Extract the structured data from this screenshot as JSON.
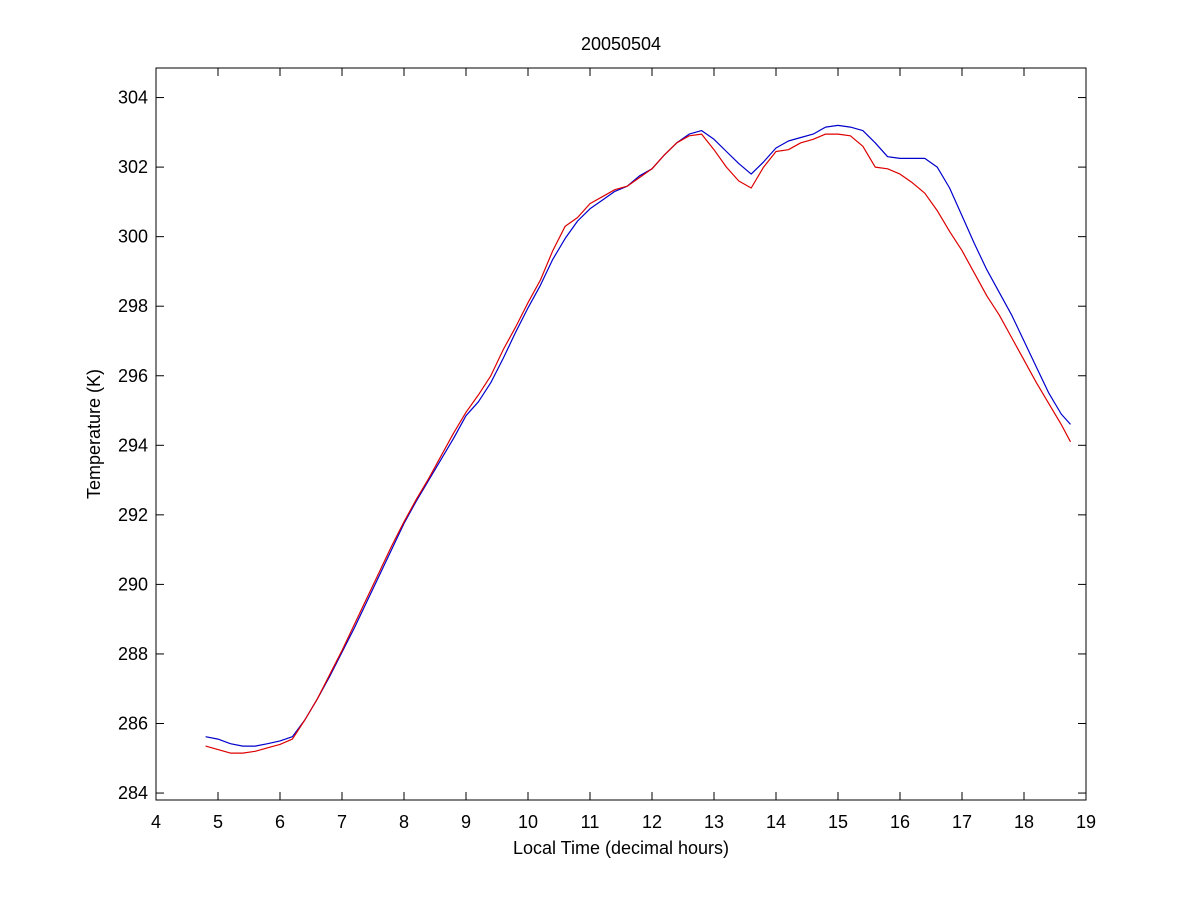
{
  "chart_data": {
    "type": "line",
    "title": "20050504",
    "xlabel": "Local Time (decimal hours)",
    "ylabel": "Temperature (K)",
    "xlim": [
      4,
      19
    ],
    "ylim": [
      283.8,
      304.85
    ],
    "xticks": [
      4,
      5,
      6,
      7,
      8,
      9,
      10,
      11,
      12,
      13,
      14,
      15,
      16,
      17,
      18,
      19
    ],
    "yticks": [
      284,
      286,
      288,
      290,
      292,
      294,
      296,
      298,
      300,
      302,
      304
    ],
    "grid": false,
    "legend": "none",
    "series": [
      {
        "color": "#0000cc",
        "points": [
          [
            4.8,
            285.62
          ],
          [
            5.0,
            285.55
          ],
          [
            5.2,
            285.42
          ],
          [
            5.4,
            285.35
          ],
          [
            5.6,
            285.35
          ],
          [
            5.8,
            285.42
          ],
          [
            6.0,
            285.5
          ],
          [
            6.2,
            285.62
          ],
          [
            6.4,
            286.1
          ],
          [
            6.6,
            286.7
          ],
          [
            6.8,
            287.35
          ],
          [
            7.0,
            288.05
          ],
          [
            7.2,
            288.75
          ],
          [
            7.4,
            289.5
          ],
          [
            7.6,
            290.25
          ],
          [
            7.8,
            291.0
          ],
          [
            8.0,
            291.75
          ],
          [
            8.2,
            292.4
          ],
          [
            8.4,
            293.0
          ],
          [
            8.6,
            293.6
          ],
          [
            8.8,
            294.2
          ],
          [
            9.0,
            294.85
          ],
          [
            9.2,
            295.25
          ],
          [
            9.4,
            295.8
          ],
          [
            9.6,
            296.5
          ],
          [
            9.8,
            297.25
          ],
          [
            10.0,
            297.95
          ],
          [
            10.2,
            298.6
          ],
          [
            10.4,
            299.35
          ],
          [
            10.6,
            299.95
          ],
          [
            10.8,
            300.45
          ],
          [
            11.0,
            300.8
          ],
          [
            11.2,
            301.05
          ],
          [
            11.4,
            301.3
          ],
          [
            11.6,
            301.45
          ],
          [
            11.8,
            301.75
          ],
          [
            12.0,
            301.95
          ],
          [
            12.2,
            302.35
          ],
          [
            12.4,
            302.7
          ],
          [
            12.6,
            302.95
          ],
          [
            12.8,
            303.05
          ],
          [
            13.0,
            302.8
          ],
          [
            13.2,
            302.45
          ],
          [
            13.4,
            302.1
          ],
          [
            13.6,
            301.8
          ],
          [
            13.8,
            302.15
          ],
          [
            14.0,
            302.55
          ],
          [
            14.2,
            302.75
          ],
          [
            14.4,
            302.85
          ],
          [
            14.6,
            302.95
          ],
          [
            14.8,
            303.15
          ],
          [
            15.0,
            303.2
          ],
          [
            15.2,
            303.15
          ],
          [
            15.4,
            303.05
          ],
          [
            15.6,
            302.7
          ],
          [
            15.8,
            302.3
          ],
          [
            16.0,
            302.25
          ],
          [
            16.2,
            302.25
          ],
          [
            16.4,
            302.25
          ],
          [
            16.6,
            302.0
          ],
          [
            16.8,
            301.4
          ],
          [
            17.0,
            300.6
          ],
          [
            17.2,
            299.8
          ],
          [
            17.4,
            299.05
          ],
          [
            17.6,
            298.4
          ],
          [
            17.8,
            297.75
          ],
          [
            18.0,
            297.0
          ],
          [
            18.2,
            296.25
          ],
          [
            18.4,
            295.5
          ],
          [
            18.6,
            294.9
          ],
          [
            18.75,
            294.6
          ]
        ]
      },
      {
        "color": "#dd0000",
        "points": [
          [
            4.8,
            285.35
          ],
          [
            5.0,
            285.25
          ],
          [
            5.2,
            285.15
          ],
          [
            5.4,
            285.15
          ],
          [
            5.6,
            285.2
          ],
          [
            5.8,
            285.3
          ],
          [
            6.0,
            285.4
          ],
          [
            6.2,
            285.55
          ],
          [
            6.4,
            286.1
          ],
          [
            6.6,
            286.7
          ],
          [
            6.8,
            287.4
          ],
          [
            7.0,
            288.1
          ],
          [
            7.2,
            288.85
          ],
          [
            7.4,
            289.6
          ],
          [
            7.6,
            290.35
          ],
          [
            7.8,
            291.1
          ],
          [
            8.0,
            291.8
          ],
          [
            8.2,
            292.45
          ],
          [
            8.4,
            293.05
          ],
          [
            8.6,
            293.7
          ],
          [
            8.8,
            294.35
          ],
          [
            9.0,
            294.95
          ],
          [
            9.2,
            295.45
          ],
          [
            9.4,
            296.0
          ],
          [
            9.6,
            296.75
          ],
          [
            9.8,
            297.4
          ],
          [
            10.0,
            298.1
          ],
          [
            10.2,
            298.75
          ],
          [
            10.4,
            299.6
          ],
          [
            10.6,
            300.3
          ],
          [
            10.8,
            300.55
          ],
          [
            11.0,
            300.95
          ],
          [
            11.2,
            301.15
          ],
          [
            11.4,
            301.35
          ],
          [
            11.6,
            301.45
          ],
          [
            11.8,
            301.7
          ],
          [
            12.0,
            301.95
          ],
          [
            12.2,
            302.35
          ],
          [
            12.4,
            302.7
          ],
          [
            12.6,
            302.9
          ],
          [
            12.8,
            302.95
          ],
          [
            13.0,
            302.5
          ],
          [
            13.2,
            302.0
          ],
          [
            13.4,
            301.6
          ],
          [
            13.6,
            301.4
          ],
          [
            13.8,
            302.0
          ],
          [
            14.0,
            302.45
          ],
          [
            14.2,
            302.5
          ],
          [
            14.4,
            302.7
          ],
          [
            14.6,
            302.8
          ],
          [
            14.8,
            302.95
          ],
          [
            15.0,
            302.95
          ],
          [
            15.2,
            302.9
          ],
          [
            15.4,
            302.6
          ],
          [
            15.6,
            302.0
          ],
          [
            15.8,
            301.95
          ],
          [
            16.0,
            301.8
          ],
          [
            16.2,
            301.55
          ],
          [
            16.4,
            301.25
          ],
          [
            16.6,
            300.75
          ],
          [
            16.8,
            300.15
          ],
          [
            17.0,
            299.6
          ],
          [
            17.2,
            298.95
          ],
          [
            17.4,
            298.3
          ],
          [
            17.6,
            297.75
          ],
          [
            17.8,
            297.1
          ],
          [
            18.0,
            296.45
          ],
          [
            18.2,
            295.8
          ],
          [
            18.4,
            295.2
          ],
          [
            18.6,
            294.6
          ],
          [
            18.75,
            294.1
          ]
        ]
      }
    ]
  }
}
